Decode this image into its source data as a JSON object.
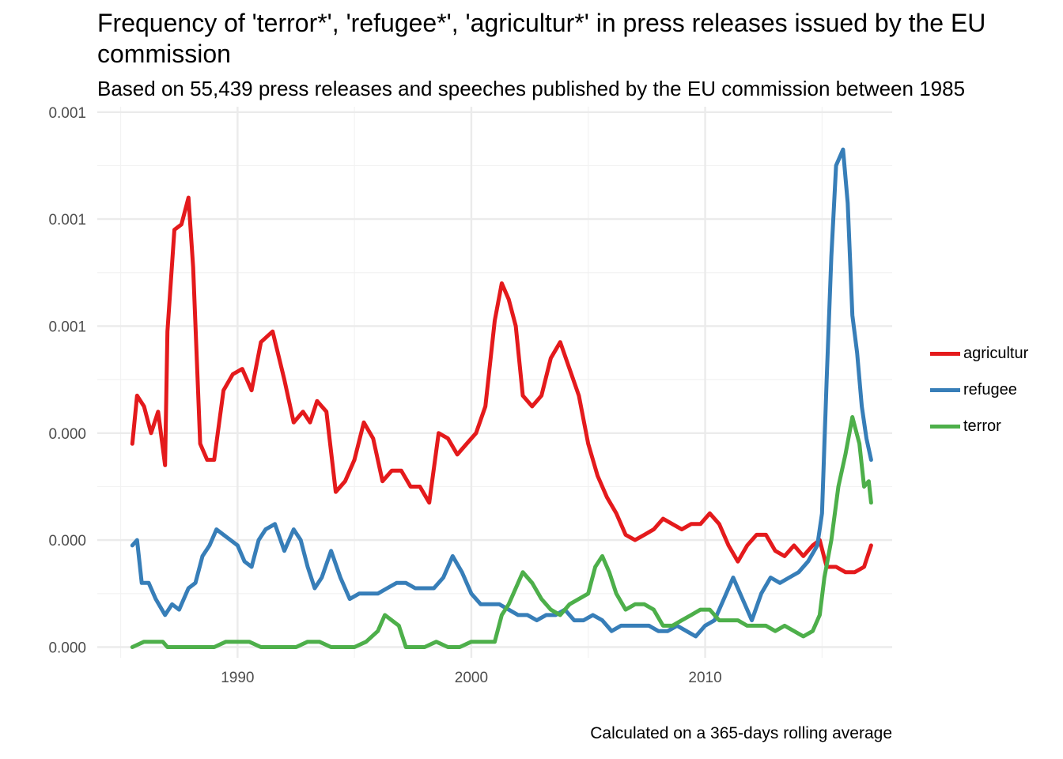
{
  "chart_data": {
    "type": "line",
    "title": "Frequency of 'terror*', 'refugee*', 'agricultur*' in press releases issued by the EU commission",
    "subtitle": "Based on 55,439 press releases and speeches published by the EU commission between 1985",
    "caption": "Calculated on a 365-days rolling average",
    "xlabel": "",
    "ylabel": "",
    "x_ticks": [
      "1990",
      "2000",
      "2010"
    ],
    "y_tick_labels": [
      "0.000",
      "0.000",
      "0.000",
      "0.001",
      "0.001",
      "0.001"
    ],
    "y_tick_values": [
      0.0,
      0.0002,
      0.0004,
      0.0006,
      0.0008,
      0.001
    ],
    "xlim": [
      1984.0,
      2018.0
    ],
    "ylim": [
      -2e-05,
      0.00101
    ],
    "grid": true,
    "legend_position": "right",
    "series": [
      {
        "name": "agricultur",
        "color": "#E41A1C",
        "x": [
          1985.5,
          1985.7,
          1986.0,
          1986.3,
          1986.6,
          1986.9,
          1987.0,
          1987.3,
          1987.6,
          1987.9,
          1988.1,
          1988.4,
          1988.7,
          1989.0,
          1989.4,
          1989.8,
          1990.2,
          1990.6,
          1991.0,
          1991.5,
          1992.0,
          1992.4,
          1992.8,
          1993.1,
          1993.4,
          1993.8,
          1994.2,
          1994.6,
          1995.0,
          1995.4,
          1995.8,
          1996.2,
          1996.6,
          1997.0,
          1997.4,
          1997.8,
          1998.2,
          1998.6,
          1999.0,
          1999.4,
          1999.8,
          2000.2,
          2000.6,
          2001.0,
          2001.3,
          2001.6,
          2001.9,
          2002.2,
          2002.6,
          2003.0,
          2003.4,
          2003.8,
          2004.2,
          2004.6,
          2005.0,
          2005.4,
          2005.8,
          2006.2,
          2006.6,
          2007.0,
          2007.4,
          2007.8,
          2008.2,
          2008.6,
          2009.0,
          2009.4,
          2009.8,
          2010.2,
          2010.6,
          2011.0,
          2011.4,
          2011.8,
          2012.2,
          2012.6,
          2013.0,
          2013.4,
          2013.8,
          2014.2,
          2014.6,
          2014.9,
          2015.2,
          2015.6,
          2016.0,
          2016.4,
          2016.8,
          2017.1
        ],
        "values": [
          0.00038,
          0.00047,
          0.00045,
          0.0004,
          0.00044,
          0.00034,
          0.00059,
          0.00078,
          0.00079,
          0.00084,
          0.00071,
          0.00038,
          0.00035,
          0.00035,
          0.00048,
          0.00051,
          0.00052,
          0.00048,
          0.00057,
          0.00059,
          0.0005,
          0.00042,
          0.00044,
          0.00042,
          0.00046,
          0.00044,
          0.00029,
          0.00031,
          0.00035,
          0.00042,
          0.00039,
          0.00031,
          0.00033,
          0.00033,
          0.0003,
          0.0003,
          0.00027,
          0.0004,
          0.00039,
          0.00036,
          0.00038,
          0.0004,
          0.00045,
          0.00061,
          0.00068,
          0.00065,
          0.0006,
          0.00047,
          0.00045,
          0.00047,
          0.00054,
          0.00057,
          0.00052,
          0.00047,
          0.00038,
          0.00032,
          0.00028,
          0.00025,
          0.00021,
          0.0002,
          0.00021,
          0.00022,
          0.00024,
          0.00023,
          0.00022,
          0.00023,
          0.00023,
          0.00025,
          0.00023,
          0.00019,
          0.00016,
          0.00019,
          0.00021,
          0.00021,
          0.00018,
          0.00017,
          0.00019,
          0.00017,
          0.00019,
          0.0002,
          0.00015,
          0.00015,
          0.00014,
          0.00014,
          0.00015,
          0.00019
        ]
      },
      {
        "name": "refugee",
        "color": "#377EB8",
        "x": [
          1985.5,
          1985.7,
          1985.9,
          1986.2,
          1986.5,
          1986.9,
          1987.2,
          1987.5,
          1987.9,
          1988.2,
          1988.5,
          1988.8,
          1989.1,
          1989.4,
          1989.7,
          1990.0,
          1990.3,
          1990.6,
          1990.9,
          1991.2,
          1991.6,
          1992.0,
          1992.4,
          1992.7,
          1993.0,
          1993.3,
          1993.6,
          1994.0,
          1994.4,
          1994.8,
          1995.2,
          1995.6,
          1996.0,
          1996.4,
          1996.8,
          1997.2,
          1997.6,
          1998.0,
          1998.4,
          1998.8,
          1999.2,
          1999.6,
          2000.0,
          2000.4,
          2000.8,
          2001.2,
          2001.6,
          2002.0,
          2002.4,
          2002.8,
          2003.2,
          2003.6,
          2004.0,
          2004.4,
          2004.8,
          2005.2,
          2005.6,
          2006.0,
          2006.4,
          2006.8,
          2007.2,
          2007.6,
          2008.0,
          2008.4,
          2008.8,
          2009.2,
          2009.6,
          2010.0,
          2010.4,
          2010.8,
          2011.2,
          2011.6,
          2012.0,
          2012.4,
          2012.8,
          2013.2,
          2013.6,
          2014.0,
          2014.4,
          2014.8,
          2015.0,
          2015.2,
          2015.4,
          2015.6,
          2015.9,
          2016.1,
          2016.3,
          2016.5,
          2016.7,
          2016.9,
          2017.1
        ],
        "values": [
          0.00019,
          0.0002,
          0.00012,
          0.00012,
          9e-05,
          6e-05,
          8e-05,
          7e-05,
          0.00011,
          0.00012,
          0.00017,
          0.00019,
          0.00022,
          0.00021,
          0.0002,
          0.00019,
          0.00016,
          0.00015,
          0.0002,
          0.00022,
          0.00023,
          0.00018,
          0.00022,
          0.0002,
          0.00015,
          0.00011,
          0.00013,
          0.00018,
          0.00013,
          9e-05,
          0.0001,
          0.0001,
          0.0001,
          0.00011,
          0.00012,
          0.00012,
          0.00011,
          0.00011,
          0.00011,
          0.00013,
          0.00017,
          0.00014,
          0.0001,
          8e-05,
          8e-05,
          8e-05,
          7e-05,
          6e-05,
          6e-05,
          5e-05,
          6e-05,
          6e-05,
          7e-05,
          5e-05,
          5e-05,
          6e-05,
          5e-05,
          3e-05,
          4e-05,
          4e-05,
          4e-05,
          4e-05,
          3e-05,
          3e-05,
          4e-05,
          3e-05,
          2e-05,
          4e-05,
          5e-05,
          9e-05,
          0.00013,
          9e-05,
          5e-05,
          0.0001,
          0.00013,
          0.00012,
          0.00013,
          0.00014,
          0.00016,
          0.00019,
          0.00025,
          0.0005,
          0.00073,
          0.0009,
          0.00093,
          0.00083,
          0.00062,
          0.00055,
          0.00045,
          0.00039,
          0.00035
        ]
      },
      {
        "name": "terror",
        "color": "#4DAF4A",
        "x": [
          1985.5,
          1986.0,
          1986.3,
          1986.8,
          1987.0,
          1987.5,
          1988.0,
          1988.5,
          1989.0,
          1989.5,
          1990.0,
          1990.5,
          1991.0,
          1991.5,
          1992.0,
          1992.5,
          1993.0,
          1993.5,
          1994.0,
          1994.5,
          1995.0,
          1995.5,
          1996.0,
          1996.3,
          1996.6,
          1996.9,
          1997.2,
          1997.6,
          1998.0,
          1998.5,
          1999.0,
          1999.5,
          2000.0,
          2000.5,
          2001.0,
          2001.3,
          2001.6,
          2001.9,
          2002.2,
          2002.6,
          2003.0,
          2003.4,
          2003.8,
          2004.2,
          2004.6,
          2005.0,
          2005.3,
          2005.6,
          2005.9,
          2006.2,
          2006.6,
          2007.0,
          2007.4,
          2007.8,
          2008.2,
          2008.6,
          2009.0,
          2009.4,
          2009.8,
          2010.2,
          2010.6,
          2011.0,
          2011.4,
          2011.8,
          2012.2,
          2012.6,
          2013.0,
          2013.4,
          2013.8,
          2014.2,
          2014.6,
          2014.9,
          2015.1,
          2015.4,
          2015.7,
          2016.0,
          2016.3,
          2016.6,
          2016.8,
          2017.0,
          2017.1
        ],
        "values": [
          0.0,
          1e-05,
          1e-05,
          1e-05,
          0.0,
          0.0,
          0.0,
          0.0,
          0.0,
          1e-05,
          1e-05,
          1e-05,
          0.0,
          0.0,
          0.0,
          0.0,
          1e-05,
          1e-05,
          0.0,
          0.0,
          0.0,
          1e-05,
          3e-05,
          6e-05,
          5e-05,
          4e-05,
          0.0,
          0.0,
          0.0,
          1e-05,
          0.0,
          0.0,
          1e-05,
          1e-05,
          1e-05,
          6e-05,
          8e-05,
          0.00011,
          0.00014,
          0.00012,
          9e-05,
          7e-05,
          6e-05,
          8e-05,
          9e-05,
          0.0001,
          0.00015,
          0.00017,
          0.00014,
          0.0001,
          7e-05,
          8e-05,
          8e-05,
          7e-05,
          4e-05,
          4e-05,
          5e-05,
          6e-05,
          7e-05,
          7e-05,
          5e-05,
          5e-05,
          5e-05,
          4e-05,
          4e-05,
          4e-05,
          3e-05,
          4e-05,
          3e-05,
          2e-05,
          3e-05,
          6e-05,
          0.00013,
          0.0002,
          0.0003,
          0.00036,
          0.00043,
          0.00038,
          0.0003,
          0.00031,
          0.00027
        ]
      }
    ]
  }
}
